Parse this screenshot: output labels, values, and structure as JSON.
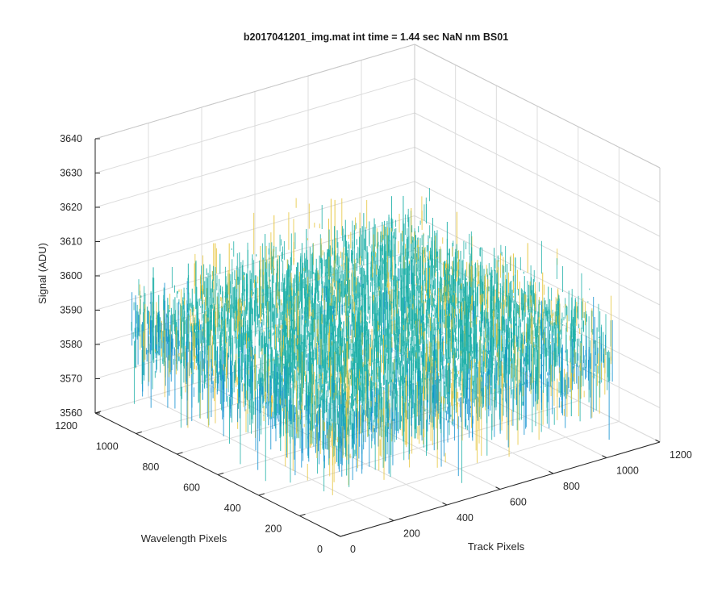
{
  "chart_data": {
    "type": "surface",
    "title": "b2017041201_img.mat int time = 1.44 sec  NaN nm BS01",
    "xlabel": "Track Pixels",
    "ylabel": "Wavelength Pixels",
    "zlabel": "Signal (ADU)",
    "xlim": [
      0,
      1200
    ],
    "ylim": [
      0,
      1200
    ],
    "zlim": [
      3560,
      3640
    ],
    "x_ticks": [
      "0",
      "200",
      "400",
      "600",
      "800",
      "1000",
      "1200"
    ],
    "y_ticks": [
      "0",
      "200",
      "400",
      "600",
      "800",
      "1000",
      "1200"
    ],
    "z_ticks": [
      "3560",
      "3570",
      "3580",
      "3590",
      "3600",
      "3610",
      "3620",
      "3630",
      "3640"
    ],
    "data_extent": {
      "x": [
        1,
        1024
      ],
      "y": [
        1,
        1024
      ]
    },
    "signal_mean": 3592,
    "signal_noise_sigma": 6,
    "signal_range": [
      3565,
      3625
    ],
    "grid": true,
    "box": true,
    "colormap": "parula",
    "colors": {
      "low": "#0d8fcf",
      "mid": "#1fb0a8",
      "high": "#e6c43a"
    }
  }
}
